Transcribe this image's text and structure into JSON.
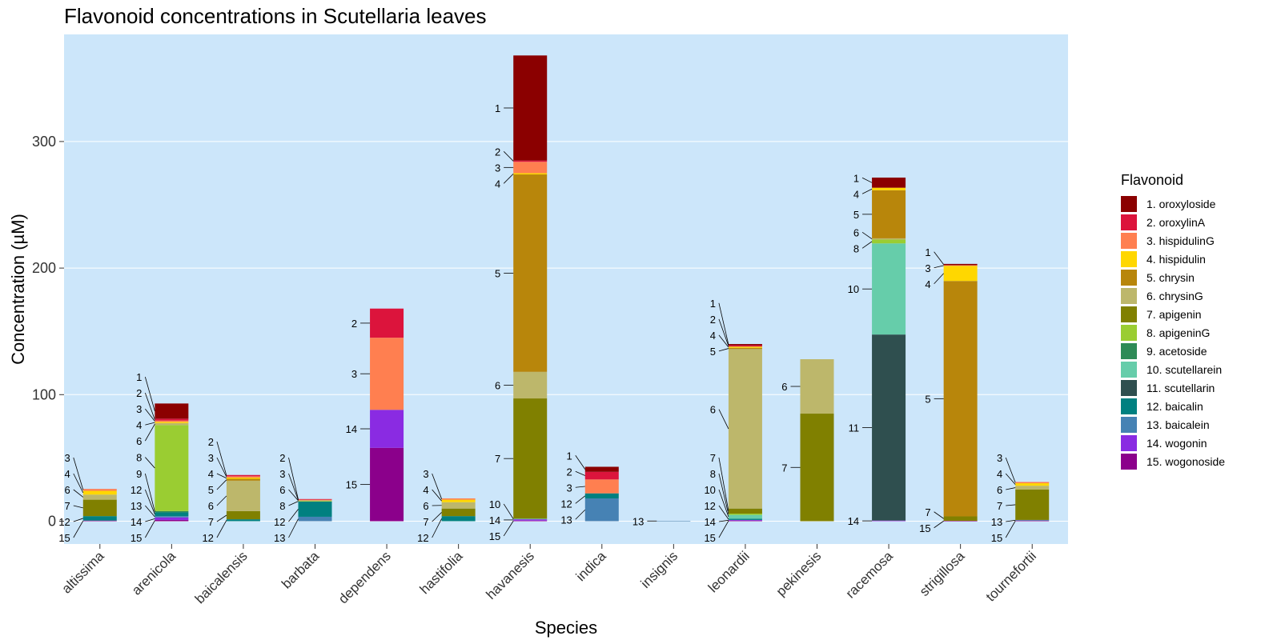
{
  "chart_data": {
    "type": "bar",
    "stacked": true,
    "title": "Flavonoid concentrations in Scutellaria leaves",
    "xlabel": "Species",
    "ylabel": "Concentration (µM)",
    "ylim": [
      -18,
      385
    ],
    "yticks": [
      0,
      100,
      200,
      300
    ],
    "grid": true,
    "legend": {
      "title": "Flavonoid",
      "position": "right"
    },
    "flavonoids": [
      {
        "id": 1,
        "name": "1. oroxyloside",
        "color": "#8B0000"
      },
      {
        "id": 2,
        "name": "2. oroxylinA",
        "color": "#DC143C"
      },
      {
        "id": 3,
        "name": "3. hispidulinG",
        "color": "#FF7F50"
      },
      {
        "id": 4,
        "name": "4. hispidulin",
        "color": "#FFD700"
      },
      {
        "id": 5,
        "name": "5. chrysin",
        "color": "#B8860B"
      },
      {
        "id": 6,
        "name": "6. chrysinG",
        "color": "#BDB76B"
      },
      {
        "id": 7,
        "name": "7. apigenin",
        "color": "#808000"
      },
      {
        "id": 8,
        "name": "8. apigeninG",
        "color": "#9ACD32"
      },
      {
        "id": 9,
        "name": "9. acetoside",
        "color": "#2E8B57"
      },
      {
        "id": 10,
        "name": "10. scutellarein",
        "color": "#66CDAA"
      },
      {
        "id": 11,
        "name": "11. scutellarin",
        "color": "#2F4F4F"
      },
      {
        "id": 12,
        "name": "12. baicalin",
        "color": "#008080"
      },
      {
        "id": 13,
        "name": "13. baicalein",
        "color": "#4682B4"
      },
      {
        "id": 14,
        "name": "14. wogonin",
        "color": "#8A2BE2"
      },
      {
        "id": 15,
        "name": "15. wogonoside",
        "color": "#8B008B"
      }
    ],
    "categories": [
      "altissima",
      "arenicola",
      "baicalensis",
      "barbata",
      "dependens",
      "hastifolia",
      "havanesis",
      "indica",
      "insignis",
      "leonardii",
      "pekinesis",
      "racemosa",
      "strigillosa",
      "tournefortii"
    ],
    "bars": [
      {
        "species": "altissima",
        "segments": [
          {
            "f": 15,
            "v": 0.5
          },
          {
            "f": 12,
            "v": 3.5
          },
          {
            "f": 7,
            "v": 13
          },
          {
            "f": 6,
            "v": 4
          },
          {
            "f": 4,
            "v": 3
          },
          {
            "f": 3,
            "v": 1.5
          }
        ]
      },
      {
        "species": "arenicola",
        "segments": [
          {
            "f": 15,
            "v": 1
          },
          {
            "f": 14,
            "v": 2
          },
          {
            "f": 13,
            "v": 1
          },
          {
            "f": 12,
            "v": 3
          },
          {
            "f": 9,
            "v": 1
          },
          {
            "f": 8,
            "v": 68
          },
          {
            "f": 6,
            "v": 1.5
          },
          {
            "f": 4,
            "v": 1
          },
          {
            "f": 3,
            "v": 1
          },
          {
            "f": 2,
            "v": 1.5
          },
          {
            "f": 1,
            "v": 12
          }
        ]
      },
      {
        "species": "baicalensis",
        "segments": [
          {
            "f": 12,
            "v": 1.5
          },
          {
            "f": 7,
            "v": 6.5
          },
          {
            "f": 6,
            "v": 24
          },
          {
            "f": 5,
            "v": 1.5
          },
          {
            "f": 4,
            "v": 1
          },
          {
            "f": 3,
            "v": 1
          },
          {
            "f": 2,
            "v": 1
          }
        ]
      },
      {
        "species": "barbata",
        "segments": [
          {
            "f": 13,
            "v": 3.5
          },
          {
            "f": 12,
            "v": 12
          },
          {
            "f": 8,
            "v": 0.5
          },
          {
            "f": 6,
            "v": 0.5
          },
          {
            "f": 3,
            "v": 0.5
          },
          {
            "f": 2,
            "v": 0.5
          }
        ]
      },
      {
        "species": "dependens",
        "segments": [
          {
            "f": 15,
            "v": 58
          },
          {
            "f": 14,
            "v": 30
          },
          {
            "f": 3,
            "v": 57
          },
          {
            "f": 2,
            "v": 23
          }
        ]
      },
      {
        "species": "hastifolia",
        "segments": [
          {
            "f": 12,
            "v": 4
          },
          {
            "f": 7,
            "v": 6
          },
          {
            "f": 6,
            "v": 5
          },
          {
            "f": 4,
            "v": 2
          },
          {
            "f": 3,
            "v": 1
          }
        ]
      },
      {
        "species": "havanesis",
        "segments": [
          {
            "f": 15,
            "v": 0.5
          },
          {
            "f": 14,
            "v": 1
          },
          {
            "f": 10,
            "v": 0.5
          },
          {
            "f": 7,
            "v": 95
          },
          {
            "f": 6,
            "v": 21
          },
          {
            "f": 5,
            "v": 156
          },
          {
            "f": 4,
            "v": 1
          },
          {
            "f": 3,
            "v": 9
          },
          {
            "f": 2,
            "v": 1
          },
          {
            "f": 1,
            "v": 83
          }
        ]
      },
      {
        "species": "indica",
        "segments": [
          {
            "f": 13,
            "v": 18
          },
          {
            "f": 12,
            "v": 4
          },
          {
            "f": 3,
            "v": 11
          },
          {
            "f": 2,
            "v": 6
          },
          {
            "f": 1,
            "v": 4
          }
        ]
      },
      {
        "species": "insignis",
        "segments": [
          {
            "f": 13,
            "v": 0.3
          }
        ]
      },
      {
        "species": "leonardii",
        "segments": [
          {
            "f": 15,
            "v": 0.5
          },
          {
            "f": 14,
            "v": 0.5
          },
          {
            "f": 12,
            "v": 1
          },
          {
            "f": 10,
            "v": 3
          },
          {
            "f": 8,
            "v": 1
          },
          {
            "f": 7,
            "v": 4
          },
          {
            "f": 6,
            "v": 126
          },
          {
            "f": 5,
            "v": 1
          },
          {
            "f": 4,
            "v": 1
          },
          {
            "f": 2,
            "v": 1
          },
          {
            "f": 1,
            "v": 1
          }
        ]
      },
      {
        "species": "pekinesis",
        "segments": [
          {
            "f": 7,
            "v": 85
          },
          {
            "f": 6,
            "v": 43
          }
        ]
      },
      {
        "species": "racemosa",
        "segments": [
          {
            "f": 14,
            "v": 0.5
          },
          {
            "f": 11,
            "v": 147
          },
          {
            "f": 10,
            "v": 72
          },
          {
            "f": 8,
            "v": 3
          },
          {
            "f": 6,
            "v": 1
          },
          {
            "f": 5,
            "v": 38
          },
          {
            "f": 4,
            "v": 2
          },
          {
            "f": 1,
            "v": 8
          }
        ]
      },
      {
        "species": "strigillosa",
        "segments": [
          {
            "f": 15,
            "v": 0.3
          },
          {
            "f": 7,
            "v": 3.5
          },
          {
            "f": 5,
            "v": 186
          },
          {
            "f": 4,
            "v": 12
          },
          {
            "f": 3,
            "v": 0.5
          },
          {
            "f": 1,
            "v": 1
          }
        ]
      },
      {
        "species": "tournefortii",
        "segments": [
          {
            "f": 15,
            "v": 0.5
          },
          {
            "f": 13,
            "v": 0.5
          },
          {
            "f": 7,
            "v": 24
          },
          {
            "f": 6,
            "v": 3
          },
          {
            "f": 4,
            "v": 2
          },
          {
            "f": 3,
            "v": 1
          }
        ]
      }
    ]
  }
}
